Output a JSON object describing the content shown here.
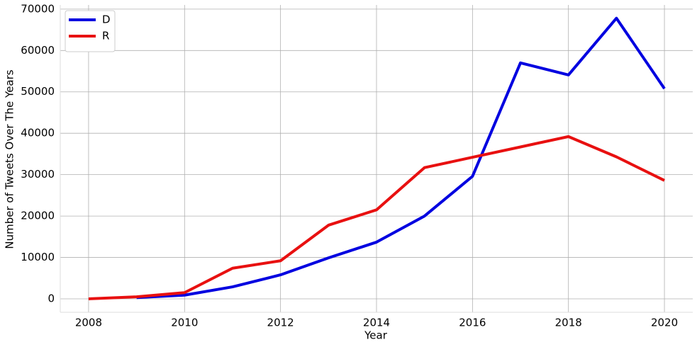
{
  "chart_data": {
    "type": "line",
    "x_label": "Year",
    "y_label": "Number of Tweets Over The Years",
    "x": [
      2008,
      2009,
      2010,
      2011,
      2012,
      2013,
      2014,
      2015,
      2016,
      2017,
      2018,
      2019,
      2020
    ],
    "series": [
      {
        "name": "D",
        "color": "#0000e0",
        "values": [
          null,
          300,
          900,
          2900,
          5800,
          9900,
          13700,
          20000,
          29600,
          57000,
          54100,
          67800,
          50800
        ]
      },
      {
        "name": "R",
        "color": "#e81010",
        "values": [
          0,
          500,
          1500,
          7400,
          9200,
          17800,
          21500,
          31700,
          34200,
          36700,
          39200,
          34300,
          28600
        ]
      }
    ],
    "xlim": [
      2007.41,
      2020.59
    ],
    "ylim": [
      -3250,
      71000
    ],
    "xticks": [
      2008,
      2010,
      2012,
      2014,
      2016,
      2018,
      2020
    ],
    "yticks": [
      0,
      10000,
      20000,
      30000,
      40000,
      50000,
      60000,
      70000
    ],
    "grid": true,
    "legend": "upper-left"
  }
}
